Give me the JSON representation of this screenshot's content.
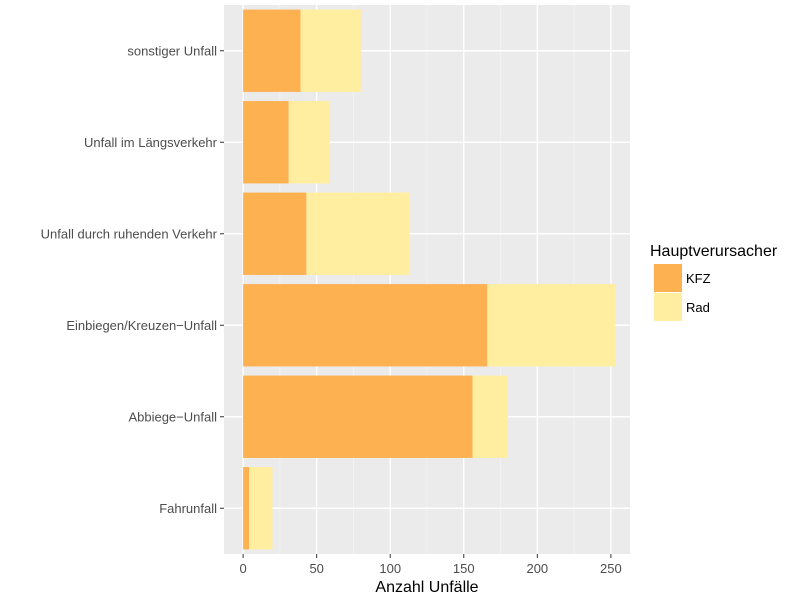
{
  "chart_data": {
    "type": "bar",
    "orientation": "horizontal",
    "stacked": true,
    "categories": [
      "Fahrunfall",
      "Abbiege−Unfall",
      "Einbiegen/Kreuzen−Unfall",
      "Unfall durch ruhenden Verkehr",
      "Unfall im Längsverkehr",
      "sonstiger Unfall"
    ],
    "series": [
      {
        "name": "KFZ",
        "color": "#FDB151",
        "values": [
          4,
          156,
          166,
          43,
          31,
          39
        ]
      },
      {
        "name": "Rad",
        "color": "#FFEDA0",
        "values": [
          16,
          24,
          87,
          70,
          28,
          41
        ]
      }
    ],
    "xlabel": "Anzahl Unfälle",
    "ylabel": "",
    "xlim": [
      -13,
      263
    ],
    "xticks": [
      0,
      50,
      100,
      150,
      200,
      250
    ],
    "xtick_labels": [
      "0",
      "50",
      "100",
      "150",
      "200",
      "250"
    ],
    "grid": true,
    "legend": {
      "title": "Hauptverursacher",
      "position": "right"
    }
  },
  "colors": {
    "panel_background": "#EBEBEB",
    "grid_major": "#FFFFFF",
    "grid_minor": "#F5F5F5",
    "axis_text": "#4D4D4D",
    "axis_title": "#000000"
  }
}
